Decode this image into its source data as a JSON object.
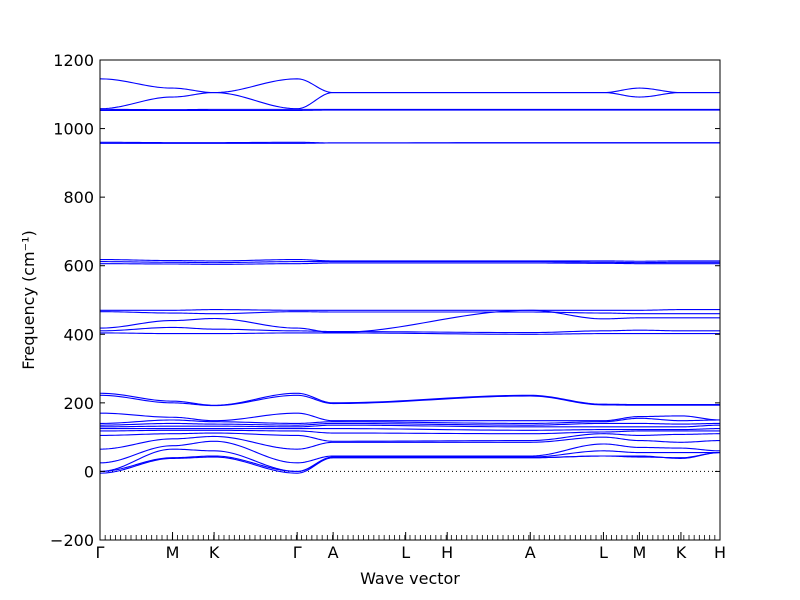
{
  "chart_data": {
    "type": "line",
    "title": "",
    "xlabel": "Wave vector",
    "ylabel": "Frequency ($cm^{-1}$)",
    "ylabel_display": "Frequency (cm⁻¹)",
    "ylim": [
      -200,
      1200
    ],
    "y_ticks": [
      -200,
      0,
      200,
      400,
      600,
      800,
      1000,
      1200
    ],
    "grid": false,
    "legend": "none",
    "line_color": "#0000ff",
    "zero_line": {
      "y": 0,
      "style": "dotted",
      "color": "#000000"
    },
    "high_symmetry_points": [
      {
        "label": "Γ",
        "x": 0
      },
      {
        "label": "M",
        "x": 0.117
      },
      {
        "label": "K",
        "x": 0.184
      },
      {
        "label": "Γ",
        "x": 0.318
      },
      {
        "label": "A",
        "x": 0.376
      },
      {
        "label": "L",
        "x": 0.493
      },
      {
        "label": "H",
        "x": 0.56
      },
      {
        "label": "A",
        "x": 0.694
      },
      {
        "label": "L",
        "x": 0.812
      },
      {
        "label": "M",
        "x": 0.87
      },
      {
        "label": "K",
        "x": 0.937
      },
      {
        "label": "H",
        "x": 1.0
      }
    ],
    "x_range": [
      0,
      1
    ],
    "series": [
      {
        "x": [
          0,
          0.117,
          0.184,
          0.318,
          0.376,
          0.694,
          0.812,
          0.87,
          0.937,
          1.0
        ],
        "values": [
          1145,
          1118,
          1105,
          1145,
          1105,
          1105,
          1105,
          1118,
          1105,
          1105
        ]
      },
      {
        "x": [
          0,
          0.117,
          0.184,
          0.318,
          0.376,
          0.694,
          0.812,
          0.87,
          0.937,
          1.0
        ],
        "values": [
          1058,
          1092,
          1105,
          1058,
          1105,
          1105,
          1105,
          1092,
          1105,
          1105
        ]
      },
      {
        "x": [
          0,
          0.117,
          0.184,
          0.318,
          0.376,
          0.694,
          0.812,
          0.87,
          0.937,
          1.0
        ],
        "values": [
          1056,
          1055,
          1056,
          1056,
          1056,
          1056,
          1056,
          1056,
          1056,
          1056
        ]
      },
      {
        "x": [
          0,
          0.117,
          0.184,
          0.318,
          0.376,
          0.694,
          0.812,
          0.87,
          0.937,
          1.0
        ],
        "values": [
          1053,
          1053,
          1053,
          1053,
          1054,
          1054,
          1054,
          1054,
          1054,
          1054
        ]
      },
      {
        "x": [
          0,
          0.117,
          0.184,
          0.318,
          0.376,
          0.694,
          0.812,
          0.87,
          0.937,
          1.0
        ],
        "values": [
          960,
          959,
          959,
          960,
          958,
          959,
          959,
          959,
          959,
          959
        ]
      },
      {
        "x": [
          0,
          0.117,
          0.184,
          0.318,
          0.376,
          0.694,
          0.812,
          0.87,
          0.937,
          1.0
        ],
        "values": [
          957,
          957,
          957,
          957,
          958,
          958,
          958,
          958,
          958,
          958
        ]
      },
      {
        "x": [
          0,
          0.117,
          0.184,
          0.318,
          0.376,
          0.694,
          0.812,
          0.87,
          0.937,
          1.0
        ],
        "values": [
          618,
          615,
          614,
          618,
          614,
          614,
          614,
          613,
          614,
          614
        ]
      },
      {
        "x": [
          0,
          0.117,
          0.184,
          0.318,
          0.376,
          0.694,
          0.812,
          0.87,
          0.937,
          1.0
        ],
        "values": [
          612,
          610,
          609,
          612,
          612,
          612,
          610,
          609,
          610,
          610
        ]
      },
      {
        "x": [
          0,
          0.117,
          0.184,
          0.318,
          0.376,
          0.694,
          0.812,
          0.87,
          0.937,
          1.0
        ],
        "values": [
          606,
          605,
          604,
          606,
          608,
          608,
          607,
          606,
          606,
          606
        ]
      },
      {
        "x": [
          0,
          0.117,
          0.184,
          0.318,
          0.376,
          0.694,
          0.812,
          0.87,
          0.937,
          1.0
        ],
        "values": [
          470,
          470,
          472,
          470,
          470,
          470,
          470,
          470,
          472,
          472
        ]
      },
      {
        "x": [
          0,
          0.117,
          0.184,
          0.318,
          0.376,
          0.694,
          0.812,
          0.87,
          0.937,
          1.0
        ],
        "values": [
          466,
          462,
          460,
          466,
          465,
          465,
          462,
          460,
          460,
          460
        ]
      },
      {
        "x": [
          0,
          0.117,
          0.184,
          0.318,
          0.376,
          0.694,
          0.812,
          0.87,
          0.937,
          1.0
        ],
        "values": [
          418,
          440,
          446,
          418,
          405,
          470,
          445,
          448,
          448,
          448
        ]
      },
      {
        "x": [
          0,
          0.117,
          0.184,
          0.318,
          0.376,
          0.694,
          0.812,
          0.87,
          0.937,
          1.0
        ],
        "values": [
          410,
          420,
          415,
          410,
          408,
          405,
          410,
          412,
          410,
          410
        ]
      },
      {
        "x": [
          0,
          0.117,
          0.184,
          0.318,
          0.376,
          0.694,
          0.812,
          0.87,
          0.937,
          1.0
        ],
        "values": [
          404,
          402,
          402,
          404,
          404,
          400,
          402,
          402,
          402,
          402
        ]
      },
      {
        "x": [
          0,
          0.117,
          0.184,
          0.318,
          0.376,
          0.694,
          0.812,
          0.87,
          0.937,
          1.0
        ],
        "values": [
          228,
          205,
          193,
          228,
          200,
          222,
          196,
          195,
          195,
          195
        ]
      },
      {
        "x": [
          0,
          0.117,
          0.184,
          0.318,
          0.376,
          0.694,
          0.812,
          0.87,
          0.937,
          1.0
        ],
        "values": [
          222,
          200,
          192,
          222,
          198,
          220,
          194,
          193,
          193,
          193
        ]
      },
      {
        "x": [
          0,
          0.117,
          0.184,
          0.318,
          0.376,
          0.694,
          0.812,
          0.87,
          0.937,
          1.0
        ],
        "values": [
          170,
          158,
          148,
          170,
          148,
          148,
          148,
          160,
          162,
          150
        ]
      },
      {
        "x": [
          0,
          0.117,
          0.184,
          0.318,
          0.376,
          0.694,
          0.812,
          0.87,
          0.937,
          1.0
        ],
        "values": [
          140,
          150,
          145,
          140,
          145,
          140,
          145,
          155,
          148,
          150
        ]
      },
      {
        "x": [
          0,
          0.117,
          0.184,
          0.318,
          0.376,
          0.694,
          0.812,
          0.87,
          0.937,
          1.0
        ],
        "values": [
          135,
          140,
          138,
          135,
          140,
          135,
          140,
          140,
          138,
          140
        ]
      },
      {
        "x": [
          0,
          0.117,
          0.184,
          0.318,
          0.376,
          0.694,
          0.812,
          0.87,
          0.937,
          1.0
        ],
        "values": [
          130,
          132,
          132,
          130,
          135,
          130,
          130,
          130,
          130,
          135
        ]
      },
      {
        "x": [
          0,
          0.117,
          0.184,
          0.318,
          0.376,
          0.694,
          0.812,
          0.87,
          0.937,
          1.0
        ],
        "values": [
          125,
          125,
          125,
          125,
          125,
          120,
          122,
          122,
          122,
          125
        ]
      },
      {
        "x": [
          0,
          0.117,
          0.184,
          0.318,
          0.376,
          0.694,
          0.812,
          0.87,
          0.937,
          1.0
        ],
        "values": [
          118,
          120,
          120,
          118,
          112,
          110,
          115,
          118,
          118,
          118
        ]
      },
      {
        "x": [
          0,
          0.117,
          0.184,
          0.318,
          0.376,
          0.694,
          0.812,
          0.87,
          0.937,
          1.0
        ],
        "values": [
          105,
          110,
          112,
          105,
          88,
          90,
          110,
          105,
          108,
          110
        ]
      },
      {
        "x": [
          0,
          0.117,
          0.184,
          0.318,
          0.376,
          0.694,
          0.812,
          0.87,
          0.937,
          1.0
        ],
        "values": [
          65,
          95,
          102,
          65,
          85,
          85,
          100,
          90,
          85,
          90
        ]
      },
      {
        "x": [
          0,
          0.117,
          0.184,
          0.318,
          0.376,
          0.694,
          0.812,
          0.87,
          0.937,
          1.0
        ],
        "values": [
          25,
          75,
          88,
          25,
          45,
          45,
          80,
          70,
          68,
          60
        ]
      },
      {
        "x": [
          0,
          0.117,
          0.184,
          0.318,
          0.376,
          0.694,
          0.812,
          0.87,
          0.937,
          1.0
        ],
        "values": [
          0,
          65,
          60,
          0,
          42,
          42,
          60,
          55,
          55,
          55
        ]
      },
      {
        "x": [
          0,
          0.117,
          0.184,
          0.318,
          0.376,
          0.694,
          0.812,
          0.87,
          0.937,
          1.0
        ],
        "values": [
          0,
          40,
          45,
          0,
          40,
          40,
          45,
          45,
          38,
          55
        ]
      },
      {
        "x": [
          0,
          0.117,
          0.184,
          0.318,
          0.376,
          0.694,
          0.812,
          0.87,
          0.937,
          1.0
        ],
        "values": [
          -5,
          38,
          42,
          -5,
          40,
          40,
          45,
          42,
          40,
          55
        ]
      }
    ]
  }
}
